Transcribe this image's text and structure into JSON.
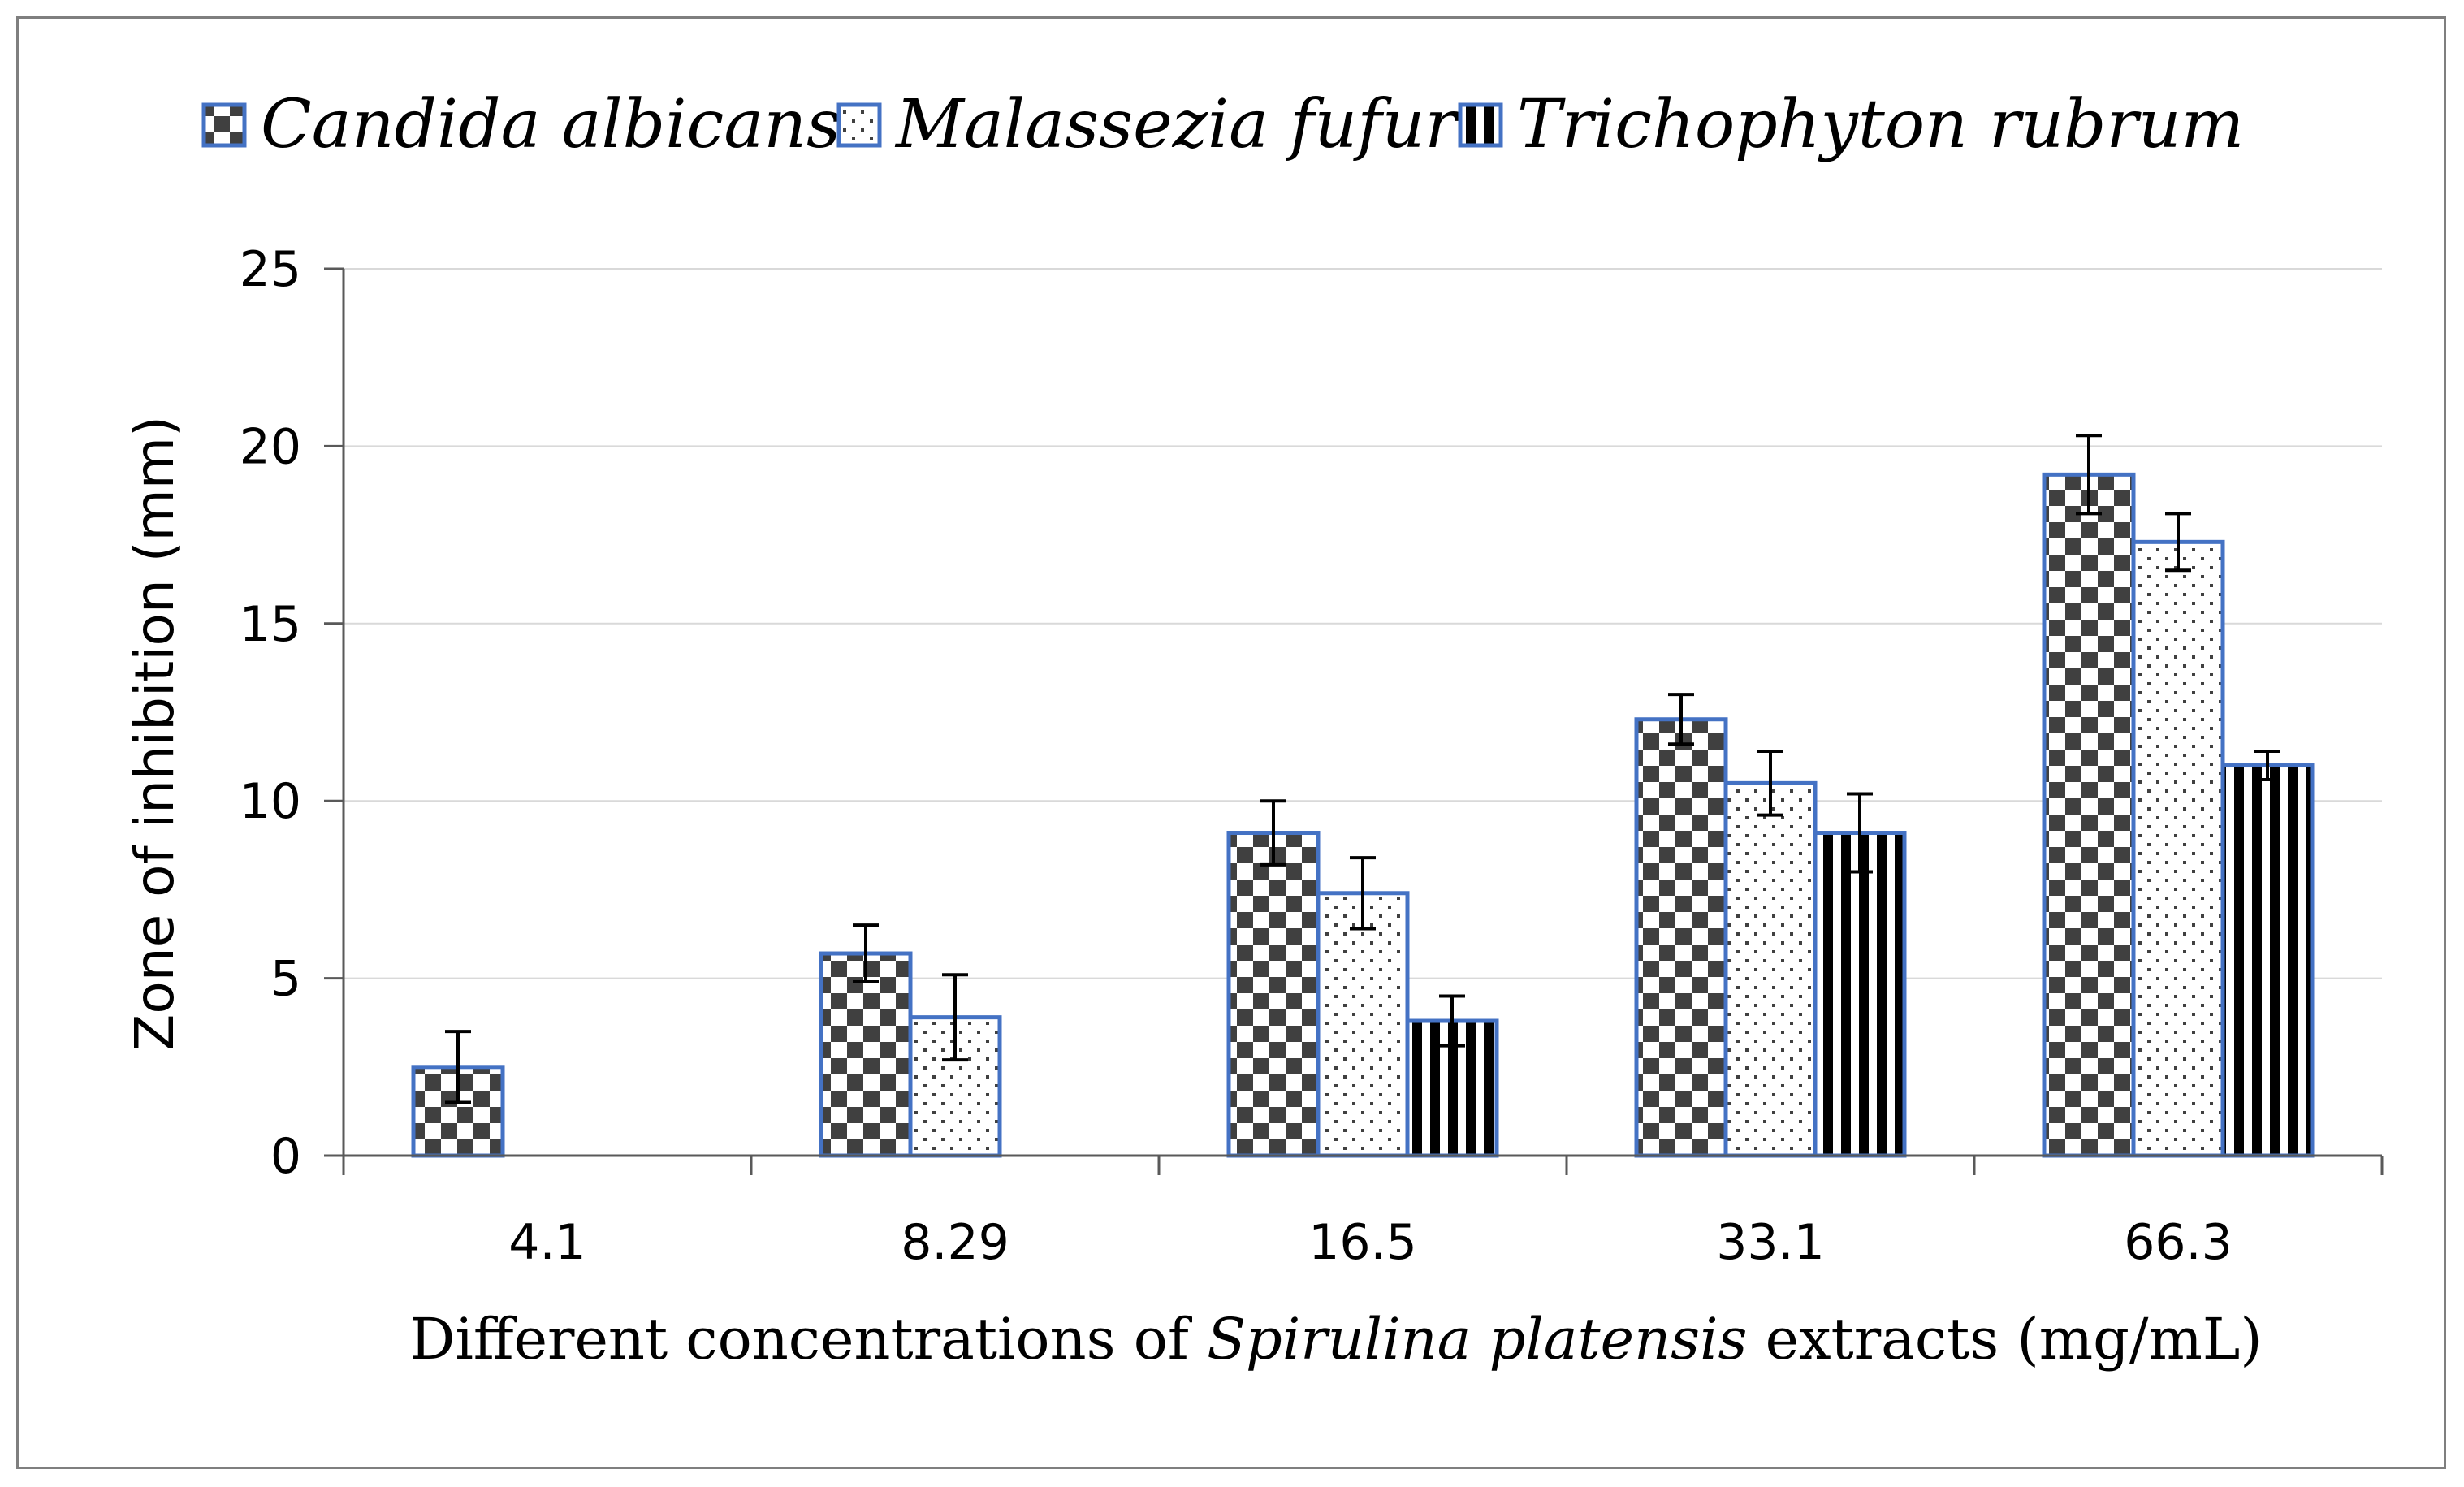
{
  "chart_data": {
    "type": "bar",
    "categories": [
      "4.1",
      "8.29",
      "16.5",
      "33.1",
      "66.3"
    ],
    "series": [
      {
        "name": "Candida albicans",
        "pattern": "checker",
        "values": [
          2.5,
          5.7,
          9.1,
          12.3,
          19.2
        ],
        "errors": [
          1.0,
          0.8,
          0.9,
          0.7,
          1.1
        ]
      },
      {
        "name": "Malassezia fufur",
        "pattern": "dots",
        "values": [
          0,
          3.9,
          7.4,
          10.5,
          17.3
        ],
        "errors": [
          0,
          1.2,
          1.0,
          0.9,
          0.8
        ]
      },
      {
        "name": "Trichophyton rubrum",
        "pattern": "vstripes",
        "values": [
          0,
          0,
          3.8,
          9.1,
          11.0
        ],
        "errors": [
          0,
          0,
          0.7,
          1.1,
          0.4
        ]
      }
    ],
    "yticks": [
      "0",
      "5",
      "10",
      "15",
      "20",
      "25"
    ],
    "ylim": [
      0,
      25
    ],
    "ylabel": "Zone of inhibition (mm)",
    "xlabel": {
      "prefix": "Different concentrations of ",
      "italic": "Spirulina platensis",
      "suffix": " extracts (mg/mL)"
    },
    "grid": true,
    "legend_position": "top"
  },
  "colors": {
    "bar_outline": "#4472c4",
    "pattern_dark": "#404040",
    "grid": "#d9d9d9",
    "axis": "#595959",
    "frame": "#7f7f7f"
  }
}
